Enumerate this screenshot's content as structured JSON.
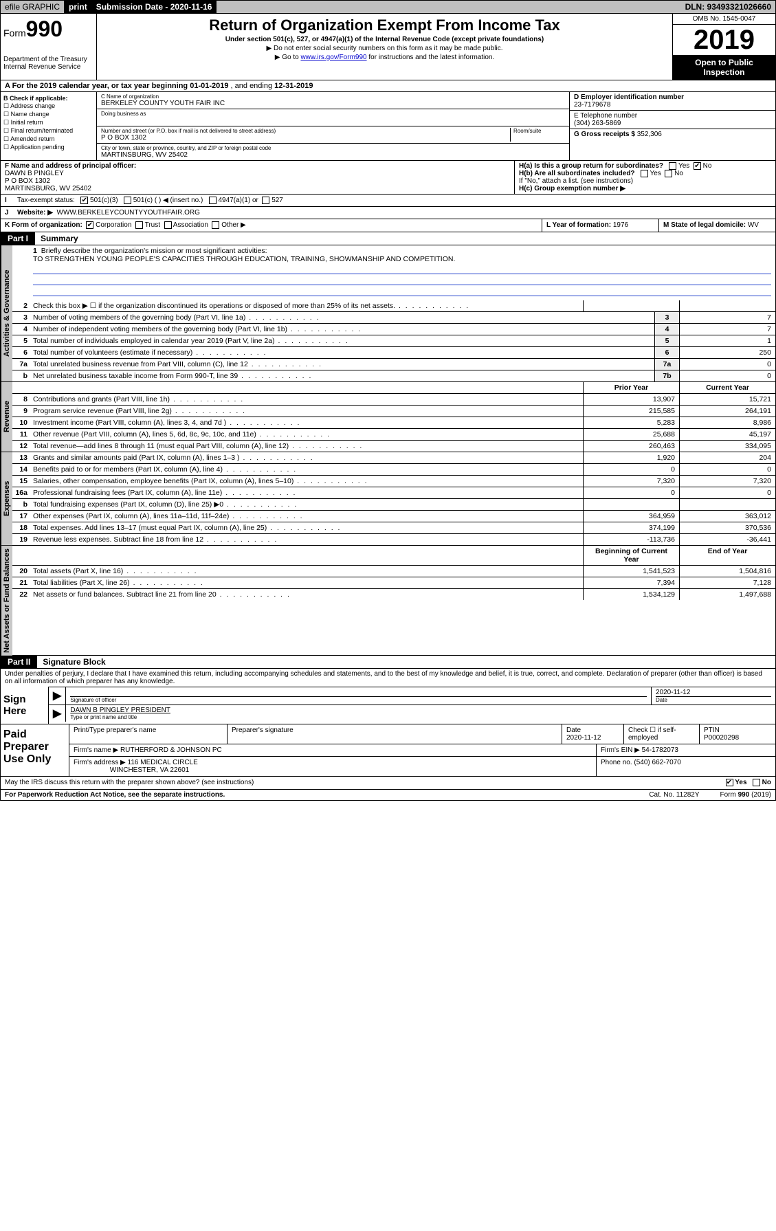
{
  "topbar": {
    "efile": "efile GRAPHIC",
    "print": "print",
    "submission_label": "Submission Date - 2020-11-16",
    "dln": "DLN: 93493321026660"
  },
  "header": {
    "form_prefix": "Form",
    "form_number": "990",
    "title": "Return of Organization Exempt From Income Tax",
    "subtitle": "Under section 501(c), 527, or 4947(a)(1) of the Internal Revenue Code (except private foundations)",
    "note1": "▶ Do not enter social security numbers on this form as it may be made public.",
    "note2_pre": "▶ Go to ",
    "note2_link": "www.irs.gov/Form990",
    "note2_post": " for instructions and the latest information.",
    "dept": "Department of the Treasury",
    "irs": "Internal Revenue Service",
    "omb": "OMB No. 1545-0047",
    "year": "2019",
    "open": "Open to Public Inspection"
  },
  "rowA": {
    "text_pre": "A For the 2019 calendar year, or tax year beginning ",
    "begin": "01-01-2019",
    "mid": " , and ending ",
    "end": "12-31-2019"
  },
  "entity": {
    "b_label": "B Check if applicable:",
    "checks": [
      "Address change",
      "Name change",
      "Initial return",
      "Final return/terminated",
      "Amended return",
      "Application pending"
    ],
    "c_label": "C Name of organization",
    "org_name": "BERKELEY COUNTY YOUTH FAIR INC",
    "dba_label": "Doing business as",
    "addr_label": "Number and street (or P.O. box if mail is not delivered to street address)",
    "room_label": "Room/suite",
    "addr": "P O BOX 1302",
    "city_label": "City or town, state or province, country, and ZIP or foreign postal code",
    "city": "MARTINSBURG, WV  25402",
    "d_label": "D Employer identification number",
    "ein": "23-7179678",
    "e_label": "E Telephone number",
    "phone": "(304) 263-5869",
    "g_label": "G Gross receipts $",
    "gross": "352,306"
  },
  "officer": {
    "f_label": "F  Name and address of principal officer:",
    "name": "DAWN B PINGLEY",
    "addr1": "P O BOX 1302",
    "addr2": "MARTINSBURG, WV  25402",
    "ha": "H(a)  Is this a group return for subordinates?",
    "hb": "H(b)  Are all subordinates included?",
    "hb_note": "If \"No,\" attach a list. (see instructions)",
    "hc": "H(c)  Group exemption number ▶",
    "yes": "Yes",
    "no": "No"
  },
  "status": {
    "i_label": "Tax-exempt status:",
    "s501c3": "501(c)(3)",
    "s501c": "501(c) (  ) ◀ (insert no.)",
    "s4947": "4947(a)(1) or",
    "s527": "527"
  },
  "website": {
    "j_label": "Website: ▶",
    "url": "WWW.BERKELEYCOUNTYYOUTHFAIR.ORG"
  },
  "korg": {
    "k_label": "K Form of organization:",
    "corp": "Corporation",
    "trust": "Trust",
    "assoc": "Association",
    "other": "Other ▶",
    "l_label": "L Year of formation:",
    "l_val": "1976",
    "m_label": "M State of legal domicile:",
    "m_val": "WV"
  },
  "part1": {
    "tag": "Part I",
    "title": "Summary"
  },
  "mission": {
    "num": "1",
    "label": "Briefly describe the organization's mission or most significant activities:",
    "text": "TO STRENGTHEN YOUNG PEOPLE'S CAPACITIES THROUGH EDUCATION, TRAINING, SHOWMANSHIP AND COMPETITION."
  },
  "gov_lines": [
    {
      "n": "2",
      "d": "Check this box ▶ ☐  if the organization discontinued its operations or disposed of more than 25% of its net assets.",
      "box": "",
      "v1": "",
      "v2": ""
    },
    {
      "n": "3",
      "d": "Number of voting members of the governing body (Part VI, line 1a)",
      "box": "3",
      "v1": "",
      "v2": "7"
    },
    {
      "n": "4",
      "d": "Number of independent voting members of the governing body (Part VI, line 1b)",
      "box": "4",
      "v1": "",
      "v2": "7"
    },
    {
      "n": "5",
      "d": "Total number of individuals employed in calendar year 2019 (Part V, line 2a)",
      "box": "5",
      "v1": "",
      "v2": "1"
    },
    {
      "n": "6",
      "d": "Total number of volunteers (estimate if necessary)",
      "box": "6",
      "v1": "",
      "v2": "250"
    },
    {
      "n": "7a",
      "d": "Total unrelated business revenue from Part VIII, column (C), line 12",
      "box": "7a",
      "v1": "",
      "v2": "0"
    },
    {
      "n": "b",
      "d": "Net unrelated business taxable income from Form 990-T, line 39",
      "box": "7b",
      "v1": "",
      "v2": "0"
    }
  ],
  "col_headers": {
    "py": "Prior Year",
    "cy": "Current Year"
  },
  "rev_lines": [
    {
      "n": "8",
      "d": "Contributions and grants (Part VIII, line 1h)",
      "v1": "13,907",
      "v2": "15,721"
    },
    {
      "n": "9",
      "d": "Program service revenue (Part VIII, line 2g)",
      "v1": "215,585",
      "v2": "264,191"
    },
    {
      "n": "10",
      "d": "Investment income (Part VIII, column (A), lines 3, 4, and 7d )",
      "v1": "5,283",
      "v2": "8,986"
    },
    {
      "n": "11",
      "d": "Other revenue (Part VIII, column (A), lines 5, 6d, 8c, 9c, 10c, and 11e)",
      "v1": "25,688",
      "v2": "45,197"
    },
    {
      "n": "12",
      "d": "Total revenue—add lines 8 through 11 (must equal Part VIII, column (A), line 12)",
      "v1": "260,463",
      "v2": "334,095"
    }
  ],
  "exp_lines": [
    {
      "n": "13",
      "d": "Grants and similar amounts paid (Part IX, column (A), lines 1–3 )",
      "v1": "1,920",
      "v2": "204"
    },
    {
      "n": "14",
      "d": "Benefits paid to or for members (Part IX, column (A), line 4)",
      "v1": "0",
      "v2": "0"
    },
    {
      "n": "15",
      "d": "Salaries, other compensation, employee benefits (Part IX, column (A), lines 5–10)",
      "v1": "7,320",
      "v2": "7,320"
    },
    {
      "n": "16a",
      "d": "Professional fundraising fees (Part IX, column (A), line 11e)",
      "v1": "0",
      "v2": "0"
    },
    {
      "n": "b",
      "d": "Total fundraising expenses (Part IX, column (D), line 25) ▶0",
      "v1": "",
      "v2": ""
    },
    {
      "n": "17",
      "d": "Other expenses (Part IX, column (A), lines 11a–11d, 11f–24e)",
      "v1": "364,959",
      "v2": "363,012"
    },
    {
      "n": "18",
      "d": "Total expenses. Add lines 13–17 (must equal Part IX, column (A), line 25)",
      "v1": "374,199",
      "v2": "370,536"
    },
    {
      "n": "19",
      "d": "Revenue less expenses. Subtract line 18 from line 12",
      "v1": "-113,736",
      "v2": "-36,441"
    }
  ],
  "na_headers": {
    "b": "Beginning of Current Year",
    "e": "End of Year"
  },
  "na_lines": [
    {
      "n": "20",
      "d": "Total assets (Part X, line 16)",
      "v1": "1,541,523",
      "v2": "1,504,816"
    },
    {
      "n": "21",
      "d": "Total liabilities (Part X, line 26)",
      "v1": "7,394",
      "v2": "7,128"
    },
    {
      "n": "22",
      "d": "Net assets or fund balances. Subtract line 21 from line 20",
      "v1": "1,534,129",
      "v2": "1,497,688"
    }
  ],
  "side_labels": {
    "gov": "Activities & Governance",
    "rev": "Revenue",
    "exp": "Expenses",
    "na": "Net Assets or Fund Balances"
  },
  "part2": {
    "tag": "Part II",
    "title": "Signature Block",
    "perjury": "Under penalties of perjury, I declare that I have examined this return, including accompanying schedules and statements, and to the best of my knowledge and belief, it is true, correct, and complete. Declaration of preparer (other than officer) is based on all information of which preparer has any knowledge."
  },
  "sign": {
    "here": "Sign Here",
    "sig_officer": "Signature of officer",
    "date_label": "Date",
    "date": "2020-11-12",
    "name": "DAWN B PINGLEY  PRESIDENT",
    "type_label": "Type or print name and title"
  },
  "prep": {
    "side": "Paid Preparer Use Only",
    "h_name": "Print/Type preparer's name",
    "h_sig": "Preparer's signature",
    "h_date": "Date",
    "date": "2020-11-12",
    "check_label": "Check ☐ if self-employed",
    "ptin_label": "PTIN",
    "ptin": "P00020298",
    "firm_label": "Firm's name   ▶",
    "firm": "RUTHERFORD & JOHNSON PC",
    "ein_label": "Firm's EIN ▶",
    "ein": "54-1782073",
    "addr_label": "Firm's address ▶",
    "addr1": "116 MEDICAL CIRCLE",
    "addr2": "WINCHESTER, VA  22601",
    "phone_label": "Phone no.",
    "phone": "(540) 662-7070"
  },
  "discuss": {
    "q": "May the IRS discuss this return with the preparer shown above? (see instructions)",
    "yes": "Yes",
    "no": "No"
  },
  "footer": {
    "pra": "For Paperwork Reduction Act Notice, see the separate instructions.",
    "cat": "Cat. No. 11282Y",
    "form": "Form 990 (2019)"
  },
  "colors": {
    "link": "#0000cc",
    "grey": "#c0c0c0",
    "uline": "#2040cc"
  }
}
